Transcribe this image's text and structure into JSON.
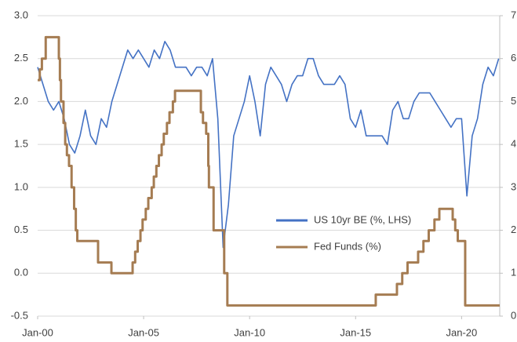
{
  "chart_data": {
    "type": "line",
    "x": [
      2000,
      2000.25,
      2000.5,
      2000.75,
      2001,
      2001.25,
      2001.5,
      2001.75,
      2002,
      2002.25,
      2002.5,
      2002.75,
      2003,
      2003.25,
      2003.5,
      2003.75,
      2004,
      2004.25,
      2004.5,
      2004.75,
      2005,
      2005.25,
      2005.5,
      2005.75,
      2006,
      2006.25,
      2006.5,
      2006.75,
      2007,
      2007.25,
      2007.5,
      2007.75,
      2008,
      2008.25,
      2008.5,
      2008.75,
      2009,
      2009.25,
      2009.5,
      2009.75,
      2010,
      2010.25,
      2010.5,
      2010.75,
      2011,
      2011.25,
      2011.5,
      2011.75,
      2012,
      2012.25,
      2012.5,
      2012.75,
      2013,
      2013.25,
      2013.5,
      2013.75,
      2014,
      2014.25,
      2014.5,
      2014.75,
      2015,
      2015.25,
      2015.5,
      2015.75,
      2016,
      2016.25,
      2016.5,
      2016.75,
      2017,
      2017.25,
      2017.5,
      2017.75,
      2018,
      2018.25,
      2018.5,
      2018.75,
      2019,
      2019.25,
      2019.5,
      2019.75,
      2020,
      2020.25,
      2020.5,
      2020.75,
      2021,
      2021.25,
      2021.5,
      2021.75
    ],
    "series": [
      {
        "name": "US 10yr BE (%, LHS)",
        "color": "#4472c4",
        "axis": "y",
        "values": [
          2.4,
          2.2,
          2.0,
          1.9,
          2.0,
          1.8,
          1.5,
          1.4,
          1.6,
          1.9,
          1.6,
          1.5,
          1.8,
          1.7,
          2.0,
          2.2,
          2.4,
          2.6,
          2.5,
          2.6,
          2.5,
          2.4,
          2.6,
          2.5,
          2.7,
          2.6,
          2.4,
          2.4,
          2.4,
          2.3,
          2.4,
          2.4,
          2.3,
          2.5,
          1.8,
          0.3,
          0.8,
          1.6,
          1.8,
          2.0,
          2.3,
          2.0,
          1.6,
          2.2,
          2.4,
          2.3,
          2.2,
          2.0,
          2.2,
          2.3,
          2.3,
          2.5,
          2.5,
          2.3,
          2.2,
          2.2,
          2.2,
          2.3,
          2.2,
          1.8,
          1.7,
          1.9,
          1.6,
          1.6,
          1.6,
          1.6,
          1.5,
          1.9,
          2.0,
          1.8,
          1.8,
          2.0,
          2.1,
          2.1,
          2.1,
          2.0,
          1.9,
          1.8,
          1.7,
          1.8,
          1.8,
          0.9,
          1.6,
          1.8,
          2.2,
          2.4,
          2.3,
          2.5
        ]
      },
      {
        "name": "Fed Funds (%)",
        "color": "#a57c52",
        "axis": "y2",
        "step": true,
        "x": [
          2000,
          2000.1,
          2000.2,
          2000.38,
          2001.0,
          2001.05,
          2001.1,
          2001.22,
          2001.3,
          2001.38,
          2001.48,
          2001.6,
          2001.72,
          2001.8,
          2001.87,
          2002.85,
          2003.48,
          2004.48,
          2004.6,
          2004.72,
          2004.85,
          2004.95,
          2005.1,
          2005.22,
          2005.38,
          2005.48,
          2005.6,
          2005.72,
          2005.85,
          2005.95,
          2006.1,
          2006.22,
          2006.38,
          2006.48,
          2007.7,
          2007.8,
          2007.95,
          2008.05,
          2008.08,
          2008.3,
          2008.8,
          2008.95,
          2015.95,
          2016.95,
          2017.2,
          2017.45,
          2017.95,
          2018.2,
          2018.45,
          2018.72,
          2018.95,
          2019.58,
          2019.7,
          2019.82,
          2020.17,
          2021.8
        ],
        "values": [
          5.5,
          5.75,
          6.0,
          6.5,
          6.0,
          5.5,
          5.0,
          4.5,
          4.0,
          3.75,
          3.5,
          3.0,
          2.5,
          2.0,
          1.75,
          1.25,
          1.0,
          1.25,
          1.5,
          1.75,
          2.0,
          2.25,
          2.5,
          2.75,
          3.0,
          3.25,
          3.5,
          3.75,
          4.0,
          4.25,
          4.5,
          4.75,
          5.0,
          5.25,
          4.75,
          4.5,
          4.25,
          3.5,
          3.0,
          2.0,
          1.0,
          0.25,
          0.5,
          0.75,
          1.0,
          1.25,
          1.5,
          1.75,
          2.0,
          2.25,
          2.5,
          2.25,
          2.0,
          1.75,
          0.25,
          0.25
        ]
      }
    ],
    "xlim": [
      2000,
      2021.8
    ],
    "xticks": [
      {
        "value": 2000,
        "label": "Jan-00"
      },
      {
        "value": 2005,
        "label": "Jan-05"
      },
      {
        "value": 2010,
        "label": "Jan-10"
      },
      {
        "value": 2015,
        "label": "Jan-15"
      },
      {
        "value": 2020,
        "label": "Jan-20"
      }
    ],
    "ylim": [
      -0.5,
      3.0
    ],
    "yticks": [
      {
        "value": -0.5,
        "label": "-0.5"
      },
      {
        "value": 0,
        "label": "0.0"
      },
      {
        "value": 0.5,
        "label": "0.5"
      },
      {
        "value": 1,
        "label": "1.0"
      },
      {
        "value": 1.5,
        "label": "1.5"
      },
      {
        "value": 2,
        "label": "2.0"
      },
      {
        "value": 2.5,
        "label": "2.5"
      },
      {
        "value": 3,
        "label": "3.0"
      }
    ],
    "y2lim": [
      0,
      7
    ],
    "y2ticks": [
      0,
      1,
      2,
      3,
      4,
      5,
      6,
      7
    ],
    "grid": true
  }
}
